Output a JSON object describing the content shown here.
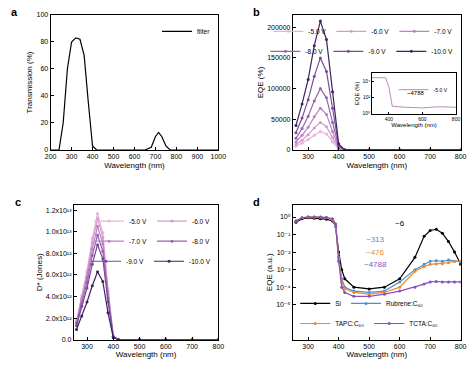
{
  "chart_data": [
    {
      "type": "line",
      "title": "a",
      "xlabel": "Wavelength (nm)",
      "ylabel": "Transmission (%)",
      "x": [
        200,
        240,
        260,
        280,
        300,
        320,
        340,
        360,
        380,
        400,
        420,
        650,
        680,
        700,
        715,
        730,
        750,
        770,
        1000
      ],
      "series": [
        {
          "name": "filter",
          "color": "#000000",
          "values": [
            0,
            0,
            20,
            60,
            80,
            83,
            82,
            70,
            35,
            3,
            0,
            0,
            2,
            10,
            13,
            10,
            3,
            0,
            0
          ]
        }
      ],
      "xlim": [
        200,
        1000
      ],
      "xticks": [
        200,
        300,
        400,
        500,
        600,
        700,
        800,
        900,
        1000
      ],
      "ylim": [
        0,
        100
      ],
      "yticks": [
        0,
        20,
        40,
        60,
        80,
        100
      ],
      "grid": false,
      "legend": "top-right"
    },
    {
      "type": "line",
      "title": "b",
      "xlabel": "Wavelength (nm)",
      "ylabel": "EQE (%)",
      "x": [
        260,
        280,
        300,
        320,
        340,
        360,
        380,
        400,
        420,
        500,
        600,
        700,
        800
      ],
      "series": [
        {
          "name": "-5.0 V",
          "color": "#e8b4d8",
          "marker": "circle",
          "values": [
            6000,
            11000,
            17000,
            24000,
            30000,
            26000,
            13000,
            1500,
            30,
            20,
            10,
            20,
            10
          ]
        },
        {
          "name": "-6.0 V",
          "color": "#d79ad0",
          "marker": "circle",
          "values": [
            9000,
            16000,
            25000,
            36000,
            45000,
            38000,
            20000,
            2000,
            50,
            40,
            30,
            40,
            30
          ]
        },
        {
          "name": "-7.0 V",
          "color": "#bd80c4",
          "marker": "circle",
          "values": [
            13000,
            24000,
            37000,
            54000,
            68000,
            58000,
            30000,
            3000,
            80,
            60,
            40,
            60,
            40
          ]
        },
        {
          "name": "-8.0 V",
          "color": "#9a62b0",
          "marker": "circle",
          "values": [
            19000,
            35000,
            55000,
            80000,
            100000,
            85000,
            45000,
            5000,
            100,
            80,
            60,
            80,
            60
          ]
        },
        {
          "name": "-9.0 V",
          "color": "#7a4a9a",
          "marker": "circle",
          "values": [
            28000,
            52000,
            82000,
            120000,
            150000,
            128000,
            68000,
            7000,
            150,
            100,
            80,
            100,
            80
          ]
        },
        {
          "name": "-10.0 V",
          "color": "#3d2360",
          "marker": "circle",
          "values": [
            40000,
            75000,
            115000,
            170000,
            210000,
            180000,
            95000,
            10000,
            200,
            150,
            100,
            150,
            100
          ]
        }
      ],
      "xlim": [
        250,
        800
      ],
      "xticks": [
        300,
        400,
        500,
        600,
        700,
        800
      ],
      "ylim": [
        0,
        220000
      ],
      "yticks": [
        0,
        50000,
        100000,
        150000,
        200000
      ],
      "grid": false,
      "legend": "top-right"
    },
    {
      "type": "line",
      "xlabel": "Wavelength (nm)",
      "ylabel": "EQE (%)",
      "log": "y",
      "x": [
        300,
        320,
        340,
        360,
        380,
        400,
        420,
        500,
        600,
        700,
        800
      ],
      "series": [
        {
          "name": "-5.0 V",
          "color": "#b06aa8",
          "values": [
            29000,
            30000,
            30000,
            29500,
            28000,
            2000,
            8,
            6,
            5,
            7,
            6
          ]
        }
      ],
      "xlim": [
        300,
        800
      ],
      "xticks": [
        400,
        600,
        800
      ],
      "ylim": [
        1,
        100000
      ],
      "yticks": [
        {
          "value": 1,
          "label": "10⁰"
        },
        {
          "value": 100,
          "label": "10²"
        },
        {
          "value": 10000,
          "label": "10⁴"
        }
      ],
      "annotations": [
        {
          "text": "~4788",
          "x": 560,
          "y": 400,
          "color": "#000000"
        }
      ],
      "grid": false,
      "legend": "top-right"
    },
    {
      "type": "line",
      "title": "c",
      "xlabel": "Wavelength (nm)",
      "ylabel": "D* (Jones)",
      "x": [
        260,
        280,
        300,
        320,
        340,
        360,
        380,
        400,
        420,
        500,
        600,
        700,
        800
      ],
      "series": [
        {
          "name": "-5.0 V",
          "color": "#e8b4d8",
          "marker": "circle",
          "values": [
            1800000000000.0,
            4100000000000.0,
            6400000000000.0,
            9400000000000.0,
            11700000000000.0,
            9900000000000.0,
            4700000000000.0,
            350000000000.0,
            0,
            0,
            0,
            0,
            0
          ]
        },
        {
          "name": "-6.0 V",
          "color": "#d79ad0",
          "marker": "circle",
          "values": [
            1700000000000.0,
            3900000000000.0,
            6200000000000.0,
            9000000000000.0,
            11200000000000.0,
            9500000000000.0,
            4500000000000.0,
            340000000000.0,
            0,
            0,
            0,
            0,
            0
          ]
        },
        {
          "name": "-7.0 V",
          "color": "#bd80c4",
          "marker": "circle",
          "values": [
            1600000000000.0,
            3700000000000.0,
            5800000000000.0,
            8400000000000.0,
            10500000000000.0,
            8900000000000.0,
            4200000000000.0,
            320000000000.0,
            0,
            0,
            0,
            0,
            0
          ]
        },
        {
          "name": "-8.0 V",
          "color": "#9a62b0",
          "marker": "circle",
          "values": [
            1500000000000.0,
            3400000000000.0,
            5300000000000.0,
            7800000000000.0,
            9700000000000.0,
            8200000000000.0,
            3900000000000.0,
            290000000000.0,
            0,
            0,
            0,
            0,
            0
          ]
        },
        {
          "name": "-9.0 V",
          "color": "#7a4a9a",
          "marker": "circle",
          "values": [
            1300000000000.0,
            3100000000000.0,
            4800000000000.0,
            7000000000000.0,
            8800000000000.0,
            7500000000000.0,
            3500000000000.0,
            260000000000.0,
            0,
            0,
            0,
            0,
            0
          ]
        },
        {
          "name": "-10.0 V",
          "color": "#3d2360",
          "marker": "circle",
          "values": [
            950000000000.0,
            2200000000000.0,
            3500000000000.0,
            5000000000000.0,
            6300000000000.0,
            5400000000000.0,
            2500000000000.0,
            190000000000.0,
            0,
            0,
            0,
            0,
            0
          ]
        }
      ],
      "xlim": [
        250,
        800
      ],
      "xticks": [
        300,
        400,
        500,
        600,
        700,
        800
      ],
      "ylim": [
        0,
        12500000000000.0
      ],
      "yticks": [
        {
          "value": 0,
          "label": "0.0"
        },
        {
          "value": 2000000000000.0,
          "label": "2.0x10¹²"
        },
        {
          "value": 4000000000000.0,
          "label": "4.0x10¹²"
        },
        {
          "value": 6000000000000.0,
          "label": "6.0x10¹²"
        },
        {
          "value": 8000000000000.0,
          "label": "8.0x10¹²"
        },
        {
          "value": 10000000000000.0,
          "label": "1.0x10¹³"
        },
        {
          "value": 12000000000000.0,
          "label": "1.2x10¹³"
        }
      ],
      "grid": false,
      "legend": "top-right"
    },
    {
      "type": "line",
      "title": "d",
      "xlabel": "Wavelength (nm)",
      "ylabel": "EQE (a.u.)",
      "log": "y",
      "x": [
        260,
        280,
        300,
        320,
        340,
        360,
        380,
        390,
        400,
        410,
        420,
        450,
        500,
        550,
        600,
        650,
        680,
        700,
        720,
        740,
        760,
        780,
        800
      ],
      "series": [
        {
          "name": "Si",
          "color": "#000000",
          "marker": "circle",
          "values": [
            0.5,
            0.8,
            0.9,
            0.85,
            0.8,
            0.75,
            0.6,
            0.3,
            0.01,
            0.001,
            0.0003,
            0.0001,
            8e-05,
            0.0001,
            0.0003,
            0.005,
            0.08,
            0.17,
            0.2,
            0.12,
            0.04,
            0.01,
            0.002
          ]
        },
        {
          "name": "Rubrene:C₆₀",
          "color": "#4a90d9",
          "marker": "circle",
          "values": [
            0.6,
            0.9,
            1,
            1,
            0.95,
            0.9,
            0.7,
            0.3,
            0.005,
            0.0003,
            0.0001,
            6e-05,
            5e-05,
            6e-05,
            0.0002,
            0.001,
            0.002,
            0.003,
            0.0032,
            0.003,
            0.0035,
            0.003,
            0.0028
          ]
        },
        {
          "name": "TAPC:C₆₀",
          "color": "#f08a24",
          "marker": "circle",
          "values": [
            0.6,
            0.9,
            1,
            1,
            1,
            0.9,
            0.7,
            0.35,
            0.004,
            0.0002,
            8e-05,
            5e-05,
            4e-05,
            5e-05,
            0.0001,
            0.0008,
            0.0015,
            0.002,
            0.0021,
            0.0022,
            0.0025,
            0.003,
            0.003
          ]
        },
        {
          "name": "TCTA:C₆₀",
          "color": "#8a4fc0",
          "marker": "circle",
          "values": [
            0.6,
            0.9,
            1,
            1,
            1,
            0.95,
            0.8,
            0.4,
            0.003,
            0.0001,
            5e-05,
            3e-05,
            3e-05,
            4e-05,
            6e-05,
            0.0001,
            0.00015,
            0.0002,
            0.00021,
            0.0002,
            0.0002,
            0.0002,
            0.0002
          ]
        }
      ],
      "xlim": [
        250,
        800
      ],
      "xticks": [
        300,
        400,
        500,
        600,
        700,
        800
      ],
      "ylim": [
        1e-07,
        5
      ],
      "yticks": [
        {
          "value": 1e-05,
          "label": "10⁻⁵"
        },
        {
          "value": 0.0001,
          "label": "10⁻⁴"
        },
        {
          "value": 0.001,
          "label": "10⁻³"
        },
        {
          "value": 0.01,
          "label": "10⁻²"
        },
        {
          "value": 0.1,
          "label": "10⁻¹"
        },
        {
          "value": 1,
          "label": "10⁰"
        }
      ],
      "annotations": [
        {
          "text": "~6",
          "x": 600,
          "y": 0.4,
          "color": "#000000"
        },
        {
          "text": "~313",
          "x": 520,
          "y": 0.05,
          "color": "#4a90d9"
        },
        {
          "text": "~476",
          "x": 520,
          "y": 0.01,
          "color": "#f08a24"
        },
        {
          "text": "~4788",
          "x": 520,
          "y": 0.002,
          "color": "#8a4fc0"
        }
      ],
      "grid": false,
      "legend": "bottom-left"
    }
  ]
}
